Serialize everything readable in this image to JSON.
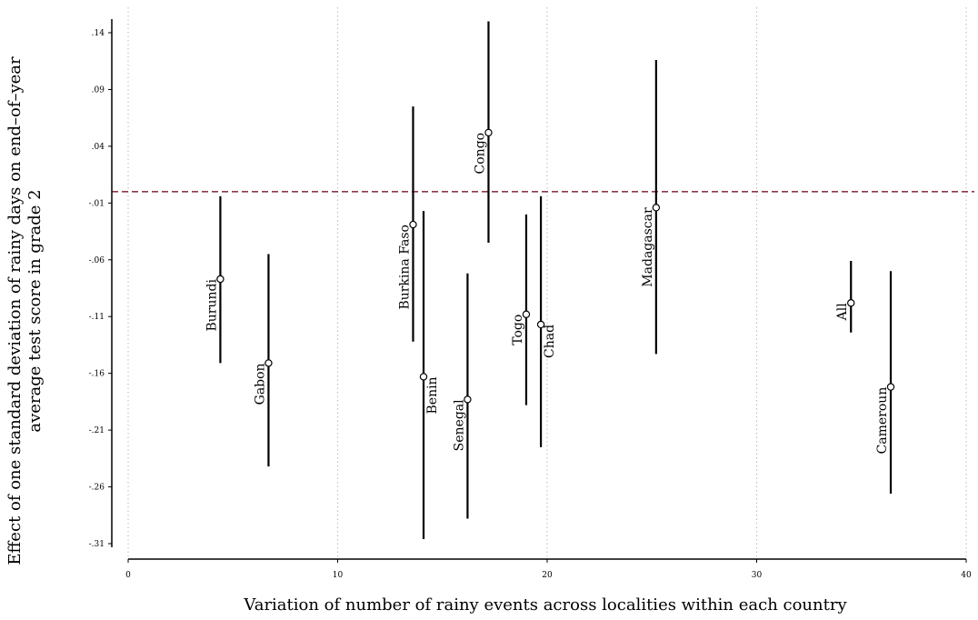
{
  "chart_data": {
    "type": "scatter",
    "subtype": "point-estimates-with-confidence-intervals",
    "xlabel": "Variation of number of rainy events across localities within each country",
    "ylabel_lines": [
      "Effect of one standard deviation of rainy days on end–of–year",
      "average test score in grade 2"
    ],
    "xlim": [
      0,
      40
    ],
    "ylim": [
      -0.31,
      0.14
    ],
    "x_ticks": [
      0,
      10,
      20,
      30,
      40
    ],
    "x_tick_labels": [
      "0",
      "10",
      "20",
      "30",
      "40"
    ],
    "y_ticks": [
      0.14,
      0.09,
      0.04,
      -0.01,
      -0.06,
      -0.11,
      -0.16,
      -0.21,
      -0.26,
      -0.31
    ],
    "y_tick_labels": [
      ".14",
      ".09",
      ".04",
      "-.01",
      "-.06",
      "-.11",
      "-.16",
      "-.21",
      "-.26",
      "-.31"
    ],
    "grid": "vertical dotted at x ticks",
    "reference_line": {
      "y": 0.0,
      "style": "dashed",
      "color": "#8b3a4a"
    },
    "marker": "hollow circle",
    "points": [
      {
        "label": "Burundi",
        "x": 4.4,
        "y": -0.077,
        "lo": -0.151,
        "hi": -0.004,
        "label_side": "left"
      },
      {
        "label": "Gabon",
        "x": 6.7,
        "y": -0.151,
        "lo": -0.242,
        "hi": -0.055,
        "label_side": "left"
      },
      {
        "label": "Burkina Faso",
        "x": 13.6,
        "y": -0.029,
        "lo": -0.132,
        "hi": 0.075,
        "label_side": "left"
      },
      {
        "label": "Benin",
        "x": 14.1,
        "y": -0.163,
        "lo": -0.306,
        "hi": -0.017,
        "label_side": "right"
      },
      {
        "label": "Congo",
        "x": 17.2,
        "y": 0.052,
        "lo": -0.045,
        "hi": 0.15,
        "label_side": "left"
      },
      {
        "label": "Senegal",
        "x": 16.2,
        "y": -0.183,
        "lo": -0.288,
        "hi": -0.072,
        "label_side": "left"
      },
      {
        "label": "Togo",
        "x": 19.0,
        "y": -0.108,
        "lo": -0.188,
        "hi": -0.02,
        "label_side": "left"
      },
      {
        "label": "Chad",
        "x": 19.7,
        "y": -0.117,
        "lo": -0.225,
        "hi": -0.004,
        "label_side": "right"
      },
      {
        "label": "Madagascar",
        "x": 25.2,
        "y": -0.014,
        "lo": -0.143,
        "hi": 0.116,
        "label_side": "left"
      },
      {
        "label": "All",
        "x": 34.5,
        "y": -0.098,
        "lo": -0.124,
        "hi": -0.061,
        "label_side": "left"
      },
      {
        "label": "Cameroun",
        "x": 36.4,
        "y": -0.172,
        "lo": -0.266,
        "hi": -0.07,
        "label_side": "left"
      }
    ],
    "colors": {
      "line": "#000000",
      "grid": "#bbbbbb",
      "reference": "#8b3a4a"
    }
  }
}
